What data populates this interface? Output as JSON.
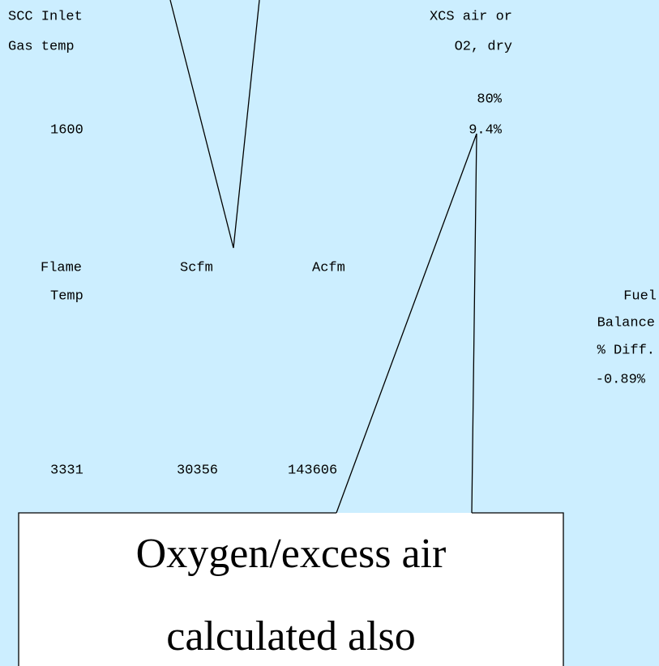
{
  "header": {
    "scc_inlet": [
      "SCC Inlet",
      "Gas temp"
    ],
    "xcs_air": [
      "XCS air or",
      "O2, dry"
    ]
  },
  "readings": {
    "xcs_air_value": "80%",
    "o2_value": "9.4%",
    "gas_temp_value": "1600"
  },
  "columns": {
    "flame_temp": [
      "Flame",
      "Temp"
    ],
    "scfm": "Scfm",
    "acfm": "Acfm",
    "fuel_balance": [
      "Fuel",
      "Balance",
      "% Diff."
    ]
  },
  "values": {
    "flame_temp": "3331",
    "scfm": "30356",
    "acfm": "143606",
    "fuel_balance": "-0.89%"
  },
  "callout": {
    "lines": [
      "Oxygen/excess air",
      "calculated also"
    ]
  }
}
